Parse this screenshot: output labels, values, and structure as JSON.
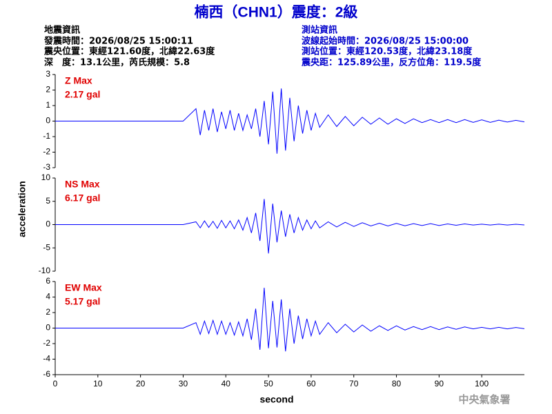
{
  "header": {
    "title": "楠西（CHN1）震度：2級",
    "left": [
      "地震資訊",
      "發震時間：2026/08/25 15:00:11",
      "震央位置：東經121.60度，北緯22.63度",
      "深　度：13.1公里，芮氏規模：5.8"
    ],
    "right": [
      "測站資訊",
      "波線起始時間：2026/08/25 15:00:00",
      "測站位置：東經120.53度，北緯23.18度",
      "震央距：125.89公里，反方位角：119.5度"
    ]
  },
  "axis_labels": {
    "y": "acceleration",
    "x": "second"
  },
  "footer": "中央氣象署",
  "chart_data": [
    {
      "type": "line",
      "label": "Z Max",
      "max_label": "2.17 gal",
      "color": "#0000ff",
      "xlim": [
        0,
        110
      ],
      "ylim": [
        -3,
        3
      ],
      "yticks": [
        -3,
        -2,
        -1,
        0,
        1,
        2,
        3
      ],
      "x": [
        0,
        10,
        20,
        30,
        33,
        34,
        35,
        36,
        37,
        38,
        39,
        40,
        41,
        42,
        43,
        44,
        45,
        46,
        47,
        48,
        49,
        50,
        51,
        52,
        53,
        54,
        55,
        56,
        57,
        58,
        59,
        60,
        61,
        62,
        64,
        66,
        68,
        70,
        72,
        74,
        76,
        78,
        80,
        82,
        84,
        86,
        88,
        90,
        92,
        94,
        96,
        98,
        100,
        102,
        104,
        106,
        108,
        110
      ],
      "values": [
        0,
        0,
        0,
        0,
        0.8,
        -0.9,
        0.7,
        -0.6,
        0.8,
        -0.7,
        0.6,
        -0.5,
        0.7,
        -0.6,
        0.5,
        -0.6,
        0.4,
        -0.5,
        0.8,
        -1.0,
        1.3,
        -1.5,
        1.9,
        -2.1,
        2.1,
        -1.9,
        1.5,
        -1.3,
        1.0,
        -0.8,
        0.7,
        -0.6,
        0.5,
        -0.4,
        0.4,
        -0.35,
        0.3,
        -0.3,
        0.25,
        -0.2,
        0.2,
        -0.2,
        0.15,
        -0.15,
        0.15,
        -0.1,
        0.1,
        -0.1,
        0.1,
        -0.1,
        0.1,
        -0.08,
        0.08,
        -0.08,
        0.06,
        -0.06,
        0.05,
        -0.05
      ]
    },
    {
      "type": "line",
      "label": "NS Max",
      "max_label": "6.17 gal",
      "color": "#0000ff",
      "xlim": [
        0,
        110
      ],
      "ylim": [
        -10,
        10
      ],
      "yticks": [
        -10,
        -5,
        0,
        5,
        10
      ],
      "x": [
        0,
        10,
        20,
        30,
        33,
        34,
        35,
        36,
        37,
        38,
        39,
        40,
        41,
        42,
        43,
        44,
        45,
        46,
        47,
        48,
        49,
        50,
        51,
        52,
        53,
        54,
        55,
        56,
        57,
        58,
        59,
        60,
        61,
        62,
        64,
        66,
        68,
        70,
        72,
        74,
        76,
        78,
        80,
        82,
        84,
        86,
        88,
        90,
        92,
        94,
        96,
        98,
        100,
        102,
        104,
        106,
        108,
        110
      ],
      "values": [
        0,
        0,
        0,
        0,
        0.6,
        -0.7,
        0.8,
        -0.6,
        0.7,
        -0.8,
        0.9,
        -0.7,
        0.8,
        -0.9,
        1.0,
        -1.2,
        1.5,
        -1.8,
        2.5,
        -3.5,
        5.5,
        -6.2,
        4.5,
        -3.8,
        3.0,
        -2.6,
        2.2,
        -1.8,
        1.5,
        -1.2,
        1.0,
        -0.9,
        0.8,
        -0.7,
        0.6,
        -0.5,
        0.5,
        -0.4,
        0.4,
        -0.3,
        0.3,
        -0.3,
        0.25,
        -0.25,
        0.2,
        -0.2,
        0.2,
        -0.2,
        0.15,
        -0.15,
        0.15,
        -0.1,
        0.1,
        -0.1,
        0.1,
        -0.1,
        0.08,
        -0.08
      ]
    },
    {
      "type": "line",
      "label": "EW Max",
      "max_label": "5.17 gal",
      "color": "#0000ff",
      "xlim": [
        0,
        110
      ],
      "ylim": [
        -6,
        6
      ],
      "yticks": [
        -6,
        -4,
        -2,
        0,
        2,
        4,
        6
      ],
      "xticks": [
        0,
        10,
        20,
        30,
        40,
        50,
        60,
        70,
        80,
        90,
        100
      ],
      "x": [
        0,
        10,
        20,
        30,
        33,
        34,
        35,
        36,
        37,
        38,
        39,
        40,
        41,
        42,
        43,
        44,
        45,
        46,
        47,
        48,
        49,
        50,
        51,
        52,
        53,
        54,
        55,
        56,
        57,
        58,
        59,
        60,
        61,
        62,
        64,
        66,
        68,
        70,
        72,
        74,
        76,
        78,
        80,
        82,
        84,
        86,
        88,
        90,
        92,
        94,
        96,
        98,
        100,
        102,
        104,
        106,
        108,
        110
      ],
      "values": [
        0,
        0,
        0,
        0,
        0.7,
        -0.8,
        0.9,
        -0.7,
        1.0,
        -0.8,
        0.9,
        -0.8,
        0.7,
        -0.9,
        0.8,
        -1.0,
        1.2,
        -1.5,
        2.5,
        -2.8,
        5.2,
        -2.6,
        3.5,
        -2.5,
        3.7,
        -3.0,
        2.5,
        -2.0,
        1.6,
        -1.4,
        1.2,
        -1.0,
        0.9,
        -0.8,
        0.7,
        -0.6,
        0.5,
        -0.5,
        0.4,
        -0.4,
        0.3,
        -0.3,
        0.3,
        -0.25,
        0.2,
        -0.2,
        0.2,
        -0.2,
        0.15,
        -0.15,
        0.15,
        -0.1,
        0.1,
        -0.1,
        0.1,
        -0.1,
        0.08,
        -0.08
      ]
    }
  ]
}
